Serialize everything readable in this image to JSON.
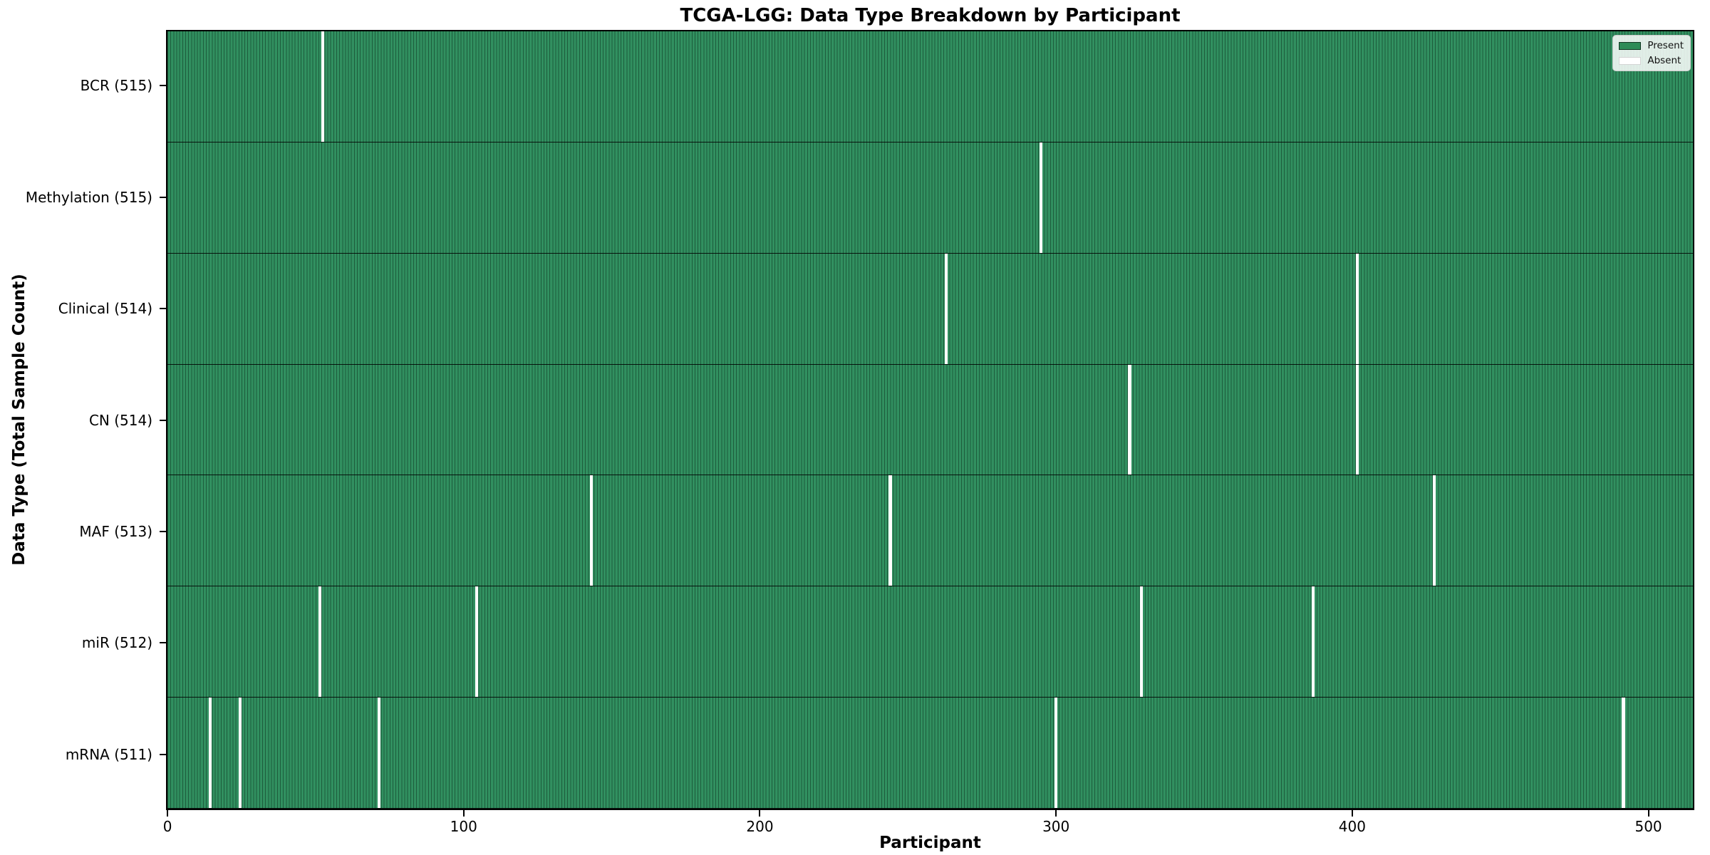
{
  "title": "TCGA-LGG: Data Type Breakdown by Participant",
  "chart_data": {
    "type": "heatmap",
    "title": "TCGA-LGG: Data Type Breakdown by Participant",
    "xlabel": "Participant",
    "ylabel": "Data Type (Total Sample Count)",
    "n_participants": 516,
    "x_ticks": [
      0,
      100,
      200,
      300,
      400,
      500
    ],
    "x_range": [
      -0.5,
      515.5
    ],
    "grid": false,
    "legend_position": "upper right",
    "legend": [
      {
        "label": "Present",
        "color": "#2e8b57"
      },
      {
        "label": "Absent",
        "color": "#ffffff"
      }
    ],
    "colors": {
      "present_fill": "#2e8b57",
      "bar_edge": "#1d5c3c",
      "absent_fill": "#ffffff",
      "plot_border": "#000000"
    },
    "rows": [
      {
        "data_type": "BCR",
        "label": "BCR (515)",
        "present_count": 515,
        "absent_participants": [
          52
        ]
      },
      {
        "data_type": "Methylation",
        "label": "Methylation (515)",
        "present_count": 515,
        "absent_participants": [
          295
        ]
      },
      {
        "data_type": "Clinical",
        "label": "Clinical (514)",
        "present_count": 514,
        "absent_participants": [
          263,
          402
        ]
      },
      {
        "data_type": "CN",
        "label": "CN (514)",
        "present_count": 514,
        "absent_participants": [
          325,
          402
        ]
      },
      {
        "data_type": "MAF",
        "label": "MAF (513)",
        "present_count": 513,
        "absent_participants": [
          143,
          244,
          428
        ]
      },
      {
        "data_type": "miR",
        "label": "miR (512)",
        "present_count": 512,
        "absent_participants": [
          51,
          104,
          329,
          387
        ]
      },
      {
        "data_type": "mRNA",
        "label": "mRNA (511)",
        "present_count": 511,
        "absent_participants": [
          14,
          24,
          71,
          300,
          492
        ]
      }
    ]
  }
}
